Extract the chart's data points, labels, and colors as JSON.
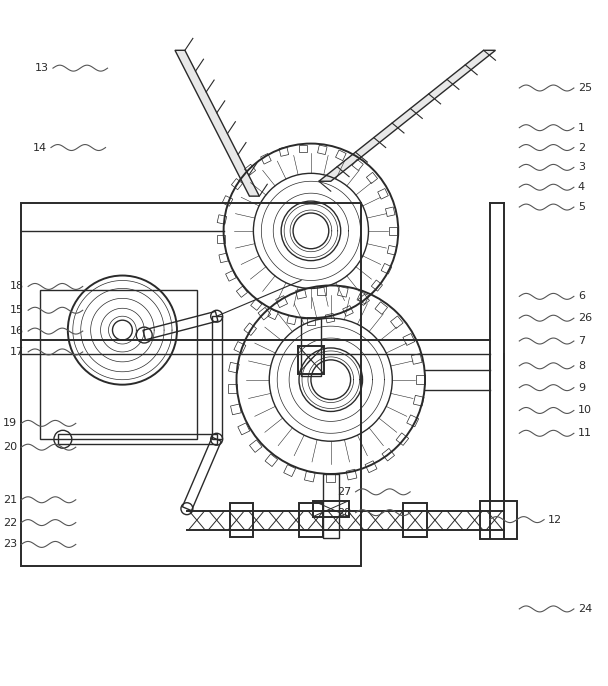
{
  "bg_color": "#ffffff",
  "line_color": "#2a2a2a",
  "label_color": "#2a2a2a",
  "figsize": [
    6.08,
    6.86
  ],
  "dpi": 100
}
